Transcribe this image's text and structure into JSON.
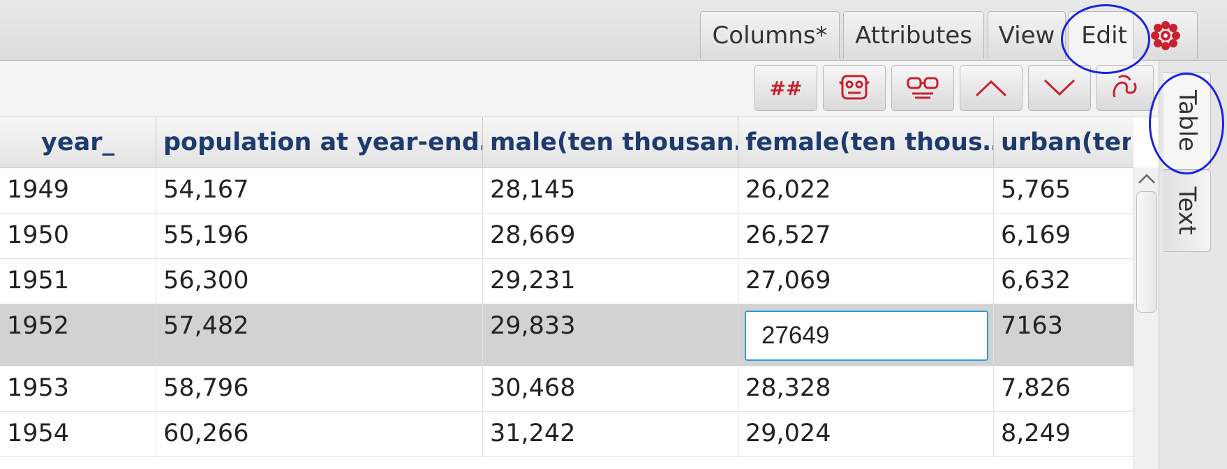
{
  "tabs": [
    {
      "label": "Columns*"
    },
    {
      "label": "Attributes"
    },
    {
      "label": "View"
    },
    {
      "label": "Edit"
    }
  ],
  "toolbar": {
    "hash_label": "##",
    "buttons": [
      "hash-icon",
      "mask-icon",
      "glasses-mask-icon",
      "chevron-up-icon",
      "chevron-down-icon",
      "dragon-icon"
    ]
  },
  "side_tabs": [
    {
      "label": "Table"
    },
    {
      "label": "Text"
    }
  ],
  "table": {
    "headers": [
      "year_",
      "population at year-end…",
      "male(ten thousan…",
      "female(ten thous…",
      "urban(ten"
    ],
    "add_column_glyph": "+",
    "rows": [
      [
        "1949",
        "54,167",
        "28,145",
        "26,022",
        "5,765"
      ],
      [
        "1950",
        "55,196",
        "28,669",
        "26,527",
        "6,169"
      ],
      [
        "1951",
        "56,300",
        "29,231",
        "27,069",
        "6,632"
      ],
      [
        "1952",
        "57,482",
        "29,833",
        "27649",
        "7163"
      ],
      [
        "1953",
        "58,796",
        "30,468",
        "28,328",
        "7,826"
      ],
      [
        "1954",
        "60,266",
        "31,242",
        "29,024",
        "8,249"
      ]
    ],
    "editing_row": 3,
    "editing_col": 3
  },
  "colors": {
    "header_text": "#1e3a6e",
    "toolbar_icon": "#c8202f",
    "highlight": "#1b22e0",
    "editor_border": "#2aa0d6"
  }
}
